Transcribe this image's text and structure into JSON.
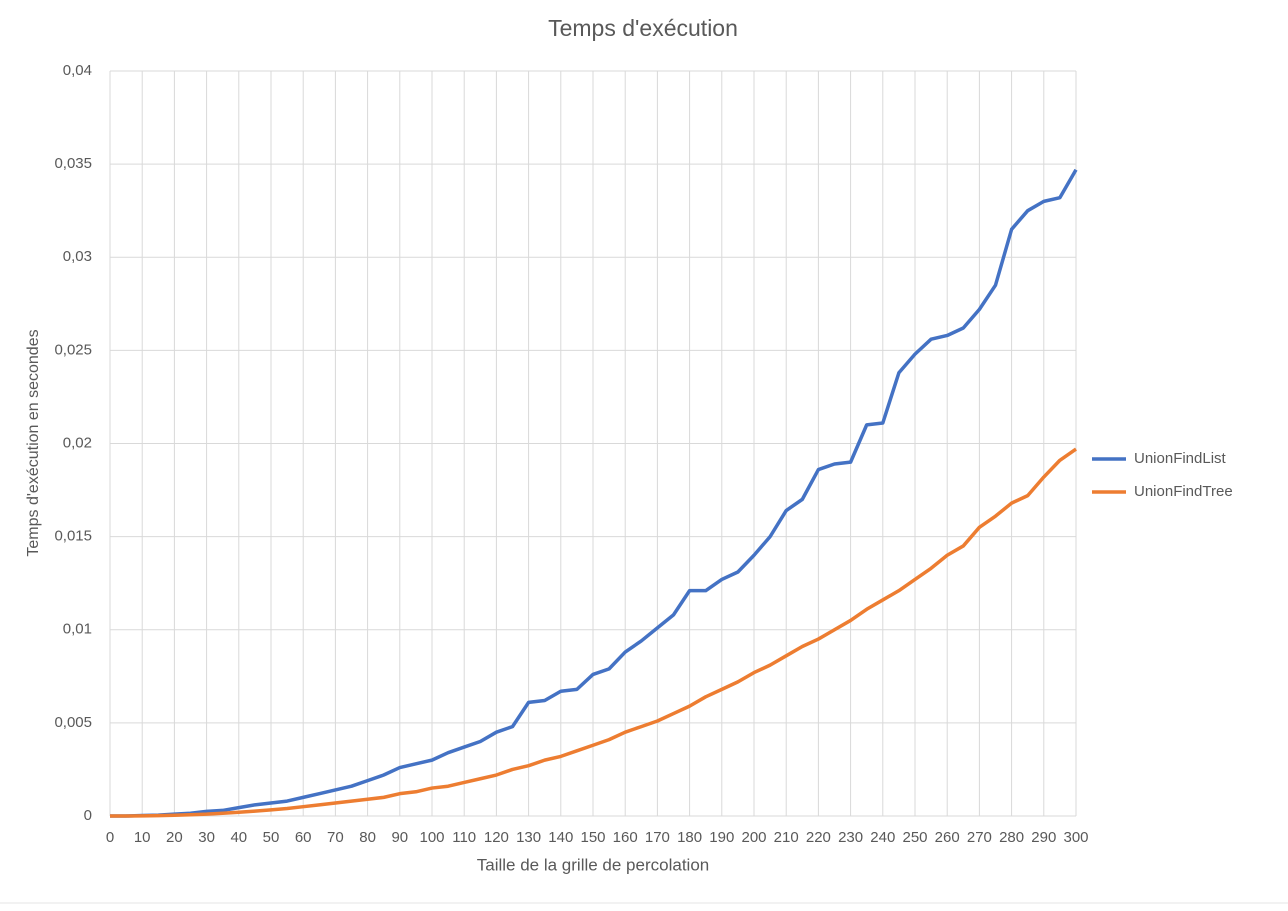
{
  "chart_data": {
    "type": "line",
    "title": "Temps d'exécution",
    "x_label": "Taille de la grille de percolation",
    "y_label": "Temps d'exécution en secondes",
    "x": [
      0,
      5,
      10,
      15,
      20,
      25,
      30,
      35,
      40,
      45,
      50,
      55,
      60,
      65,
      70,
      75,
      80,
      85,
      90,
      95,
      100,
      105,
      110,
      115,
      120,
      125,
      130,
      135,
      140,
      145,
      150,
      155,
      160,
      165,
      170,
      175,
      180,
      185,
      190,
      195,
      200,
      205,
      210,
      215,
      220,
      225,
      230,
      235,
      240,
      245,
      250,
      255,
      260,
      265,
      270,
      275,
      280,
      285,
      290,
      295,
      300
    ],
    "series": [
      {
        "name": "UnionFindList",
        "color": "#4472c4",
        "values": [
          0,
          0,
          3e-05,
          5e-05,
          0.0001,
          0.00015,
          0.00025,
          0.0003,
          0.00045,
          0.0006,
          0.0007,
          0.0008,
          0.001,
          0.0012,
          0.0014,
          0.0016,
          0.0019,
          0.0022,
          0.0026,
          0.0028,
          0.003,
          0.0034,
          0.0037,
          0.004,
          0.0045,
          0.0048,
          0.0061,
          0.0062,
          0.0067,
          0.0068,
          0.0076,
          0.0079,
          0.0088,
          0.0094,
          0.0101,
          0.0108,
          0.0121,
          0.0121,
          0.0127,
          0.0131,
          0.014,
          0.015,
          0.0164,
          0.017,
          0.0186,
          0.0189,
          0.019,
          0.021,
          0.0211,
          0.0238,
          0.0248,
          0.0256,
          0.0258,
          0.0262,
          0.0272,
          0.0285,
          0.0315,
          0.0325,
          0.033,
          0.0332,
          0.0347
        ]
      },
      {
        "name": "UnionFindTree",
        "color": "#ed7d31",
        "values": [
          0,
          0,
          1e-05,
          2e-05,
          4e-05,
          7e-05,
          0.0001,
          0.00015,
          0.0002,
          0.00026,
          0.00033,
          0.0004,
          0.0005,
          0.0006,
          0.0007,
          0.0008,
          0.0009,
          0.001,
          0.0012,
          0.0013,
          0.0015,
          0.0016,
          0.0018,
          0.002,
          0.0022,
          0.0025,
          0.0027,
          0.003,
          0.0032,
          0.0035,
          0.0038,
          0.0041,
          0.0045,
          0.0048,
          0.0051,
          0.0055,
          0.0059,
          0.0064,
          0.0068,
          0.0072,
          0.0077,
          0.0081,
          0.0086,
          0.0091,
          0.0095,
          0.01,
          0.0105,
          0.0111,
          0.0116,
          0.0121,
          0.0127,
          0.0133,
          0.014,
          0.0145,
          0.0155,
          0.0161,
          0.0168,
          0.0172,
          0.0182,
          0.0191,
          0.0197
        ]
      }
    ],
    "xlim": [
      0,
      300
    ],
    "xticks": [
      0,
      10,
      20,
      30,
      40,
      50,
      60,
      70,
      80,
      90,
      100,
      110,
      120,
      130,
      140,
      150,
      160,
      170,
      180,
      190,
      200,
      210,
      220,
      230,
      240,
      250,
      260,
      270,
      280,
      290,
      300
    ],
    "ylim": [
      0,
      0.04
    ],
    "yticks": [
      0,
      {
        "value": 0.005,
        "label": "0,005"
      },
      {
        "value": 0.01,
        "label": "0,01"
      },
      {
        "value": 0.015,
        "label": "0,015"
      },
      {
        "value": 0.02,
        "label": "0,02"
      },
      {
        "value": 0.025,
        "label": "0,025"
      },
      {
        "value": 0.03,
        "label": "0,03"
      },
      {
        "value": 0.035,
        "label": "0,035"
      },
      {
        "value": 0.04,
        "label": "0,04"
      }
    ],
    "grid": true,
    "legend": "right"
  }
}
